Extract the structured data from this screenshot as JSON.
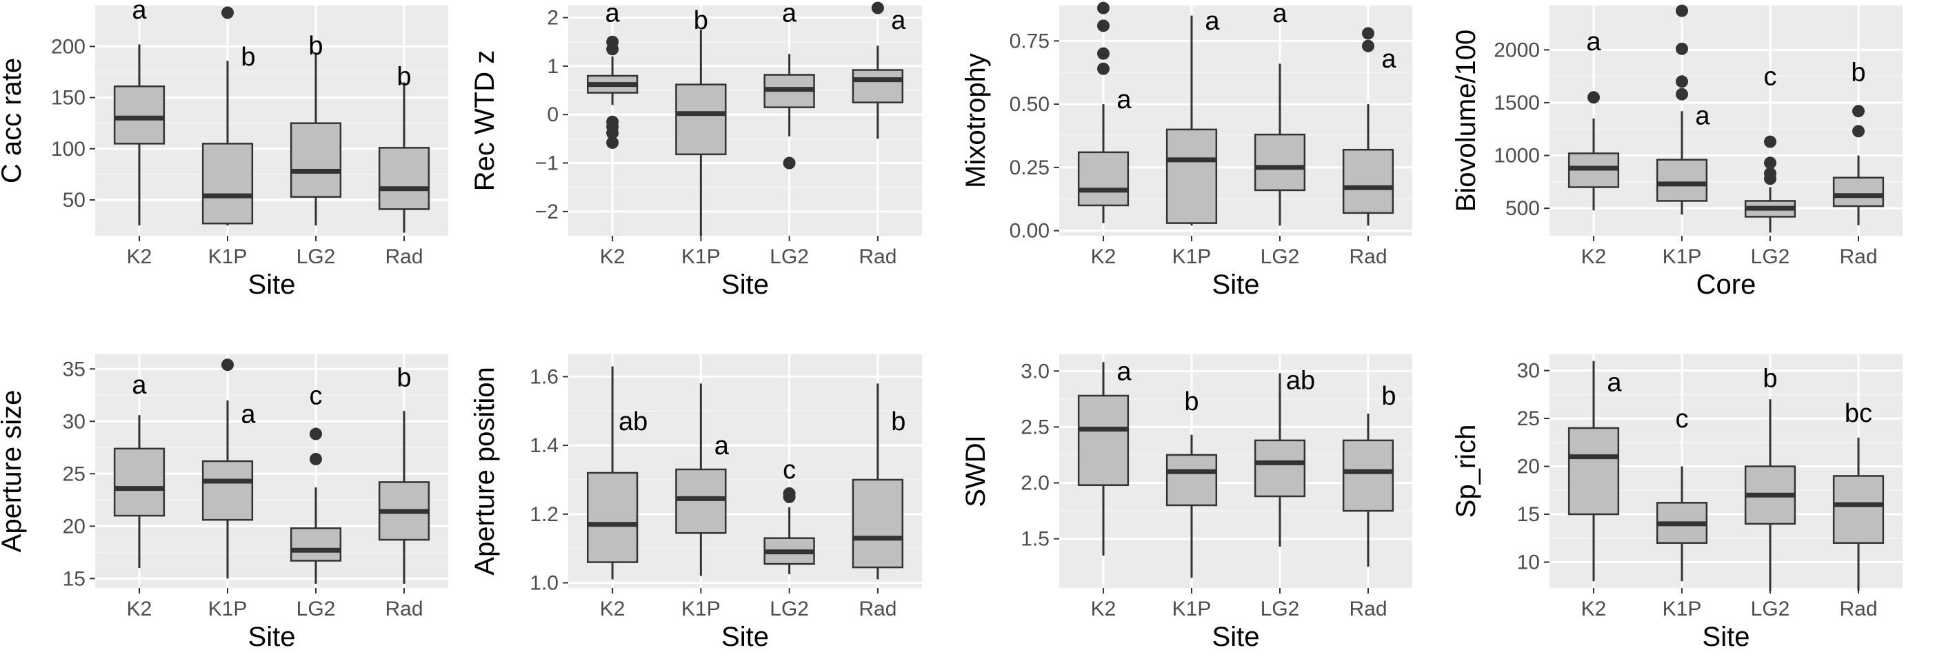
{
  "colors": {
    "panel_bg": "#ebebeb",
    "grid_major": "#ffffff",
    "box_fill": "#bfbfbf",
    "box_line": "#333333",
    "tick_text": "#4d4d4d",
    "text": "#000000"
  },
  "chart_data": [
    {
      "type": "boxplot",
      "title": "",
      "xlabel": "Site",
      "ylabel": "C acc rate",
      "categories": [
        "K2",
        "K1P",
        "LG2",
        "Rad"
      ],
      "ylim": [
        15,
        240
      ],
      "yticks": [
        50,
        100,
        150,
        200
      ],
      "yticklabels": [
        "50",
        "100",
        "150",
        "200"
      ],
      "boxes": [
        {
          "min": 25,
          "q1": 105,
          "median": 130,
          "q3": 161,
          "max": 202,
          "outliers": []
        },
        {
          "min": 25,
          "q1": 27,
          "median": 54,
          "q3": 105,
          "max": 186,
          "outliers": [
            233
          ]
        },
        {
          "min": 25,
          "q1": 53,
          "median": 78,
          "q3": 125,
          "max": 194,
          "outliers": []
        },
        {
          "min": 18,
          "q1": 41,
          "median": 61,
          "q3": 101,
          "max": 165,
          "outliers": []
        }
      ],
      "letters": [
        {
          "text": "a",
          "y": 236,
          "dx": 0
        },
        {
          "text": "b",
          "y": 190,
          "dx": 30
        },
        {
          "text": "b",
          "y": 201,
          "dx": 0
        },
        {
          "text": "b",
          "y": 171,
          "dx": 0
        }
      ]
    },
    {
      "type": "boxplot",
      "title": "",
      "xlabel": "Site",
      "ylabel": "Rec WTD z",
      "categories": [
        "K2",
        "K1P",
        "LG2",
        "Rad"
      ],
      "ylim": [
        -2.5,
        2.25
      ],
      "yticks": [
        -2,
        -1,
        0,
        1,
        2
      ],
      "yticklabels": [
        "−2",
        "−1",
        "0",
        "1",
        "2"
      ],
      "boxes": [
        {
          "min": 0.2,
          "q1": 0.45,
          "median": 0.62,
          "q3": 0.8,
          "max": 1.2,
          "outliers": [
            1.5,
            1.35,
            -0.15,
            -0.25,
            -0.38,
            -0.58
          ]
        },
        {
          "min": -2.5,
          "q1": -0.82,
          "median": 0.02,
          "q3": 0.62,
          "max": 1.75,
          "outliers": []
        },
        {
          "min": -0.45,
          "q1": 0.15,
          "median": 0.52,
          "q3": 0.82,
          "max": 1.25,
          "outliers": [
            -1.0
          ]
        },
        {
          "min": -0.5,
          "q1": 0.25,
          "median": 0.72,
          "q3": 0.92,
          "max": 1.42,
          "outliers": [
            2.2
          ]
        }
      ],
      "letters": [
        {
          "text": "a",
          "y": 2.1,
          "dx": 0
        },
        {
          "text": "b",
          "y": 1.95,
          "dx": 0
        },
        {
          "text": "a",
          "y": 2.1,
          "dx": 0
        },
        {
          "text": "a",
          "y": 1.95,
          "dx": 30
        }
      ]
    },
    {
      "type": "boxplot",
      "title": "",
      "xlabel": "Site",
      "ylabel": "Mixotrophy",
      "categories": [
        "K2",
        "K1P",
        "LG2",
        "Rad"
      ],
      "ylim": [
        -0.02,
        0.89
      ],
      "yticks": [
        0,
        0.25,
        0.5,
        0.75
      ],
      "yticklabels": [
        "0.00",
        "0.25",
        "0.50",
        "0.75"
      ],
      "boxes": [
        {
          "min": 0.03,
          "q1": 0.1,
          "median": 0.16,
          "q3": 0.31,
          "max": 0.5,
          "outliers": [
            0.88,
            0.81,
            0.7,
            0.64
          ]
        },
        {
          "min": 0.02,
          "q1": 0.03,
          "median": 0.28,
          "q3": 0.4,
          "max": 0.85,
          "outliers": []
        },
        {
          "min": 0.02,
          "q1": 0.16,
          "median": 0.25,
          "q3": 0.38,
          "max": 0.66,
          "outliers": []
        },
        {
          "min": 0.02,
          "q1": 0.07,
          "median": 0.17,
          "q3": 0.32,
          "max": 0.5,
          "outliers": [
            0.78,
            0.73
          ]
        }
      ],
      "letters": [
        {
          "text": "a",
          "y": 0.52,
          "dx": 30
        },
        {
          "text": "a",
          "y": 0.83,
          "dx": 30
        },
        {
          "text": "a",
          "y": 0.86,
          "dx": 0
        },
        {
          "text": "a",
          "y": 0.68,
          "dx": 30
        }
      ]
    },
    {
      "type": "boxplot",
      "title": "",
      "xlabel": "Core",
      "ylabel": "Biovolume/100",
      "categories": [
        "K2",
        "K1P",
        "LG2",
        "Rad"
      ],
      "ylim": [
        240,
        2420
      ],
      "yticks": [
        500,
        1000,
        1500,
        2000
      ],
      "yticklabels": [
        "500",
        "1000",
        "1500",
        "2000"
      ],
      "boxes": [
        {
          "min": 480,
          "q1": 700,
          "median": 880,
          "q3": 1020,
          "max": 1350,
          "outliers": [
            1550
          ]
        },
        {
          "min": 440,
          "q1": 570,
          "median": 730,
          "q3": 960,
          "max": 1420,
          "outliers": [
            2370,
            2010,
            1700,
            1580
          ]
        },
        {
          "min": 270,
          "q1": 420,
          "median": 500,
          "q3": 570,
          "max": 700,
          "outliers": [
            1130,
            930,
            830,
            780
          ]
        },
        {
          "min": 340,
          "q1": 520,
          "median": 620,
          "q3": 790,
          "max": 1000,
          "outliers": [
            1420,
            1230
          ]
        }
      ],
      "letters": [
        {
          "text": "a",
          "y": 2080,
          "dx": 0
        },
        {
          "text": "a",
          "y": 1380,
          "dx": 30
        },
        {
          "text": "c",
          "y": 1750,
          "dx": 0
        },
        {
          "text": "b",
          "y": 1790,
          "dx": 0
        }
      ]
    },
    {
      "type": "boxplot",
      "title": "",
      "xlabel": "Site",
      "ylabel": "Aperture size",
      "categories": [
        "K2",
        "K1P",
        "LG2",
        "Rad"
      ],
      "ylim": [
        14.1,
        36.4
      ],
      "yticks": [
        15,
        20,
        25,
        30,
        35
      ],
      "yticklabels": [
        "15",
        "20",
        "25",
        "30",
        "35"
      ],
      "boxes": [
        {
          "min": 16,
          "q1": 21,
          "median": 23.6,
          "q3": 27.4,
          "max": 30.6,
          "outliers": []
        },
        {
          "min": 15,
          "q1": 20.6,
          "median": 24.3,
          "q3": 26.2,
          "max": 32,
          "outliers": [
            35.4
          ]
        },
        {
          "min": 14.5,
          "q1": 16.7,
          "median": 17.7,
          "q3": 19.8,
          "max": 23.7,
          "outliers": [
            28.8,
            26.4
          ]
        },
        {
          "min": 14.5,
          "q1": 18.7,
          "median": 21.4,
          "q3": 24.2,
          "max": 31,
          "outliers": []
        }
      ],
      "letters": [
        {
          "text": "a",
          "y": 33.5,
          "dx": 0
        },
        {
          "text": "a",
          "y": 30.7,
          "dx": 30
        },
        {
          "text": "c",
          "y": 32.5,
          "dx": 0
        },
        {
          "text": "b",
          "y": 34.2,
          "dx": 0
        }
      ]
    },
    {
      "type": "boxplot",
      "title": "",
      "xlabel": "Site",
      "ylabel": "Aperture position",
      "categories": [
        "K2",
        "K1P",
        "LG2",
        "Rad"
      ],
      "ylim": [
        0.985,
        1.665
      ],
      "yticks": [
        1.0,
        1.2,
        1.4,
        1.6
      ],
      "yticklabels": [
        "1.0",
        "1.2",
        "1.4",
        "1.6"
      ],
      "boxes": [
        {
          "min": 1.01,
          "q1": 1.06,
          "median": 1.17,
          "q3": 1.32,
          "max": 1.63,
          "outliers": []
        },
        {
          "min": 1.02,
          "q1": 1.145,
          "median": 1.245,
          "q3": 1.33,
          "max": 1.58,
          "outliers": []
        },
        {
          "min": 1.025,
          "q1": 1.055,
          "median": 1.09,
          "q3": 1.13,
          "max": 1.22,
          "outliers": [
            1.26,
            1.25
          ]
        },
        {
          "min": 1.01,
          "q1": 1.045,
          "median": 1.13,
          "q3": 1.3,
          "max": 1.58,
          "outliers": []
        }
      ],
      "letters": [
        {
          "text": "ab",
          "y": 1.47,
          "dx": 30
        },
        {
          "text": "a",
          "y": 1.4,
          "dx": 30
        },
        {
          "text": "c",
          "y": 1.33,
          "dx": 0
        },
        {
          "text": "b",
          "y": 1.47,
          "dx": 30
        }
      ]
    },
    {
      "type": "boxplot",
      "title": "",
      "xlabel": "Site",
      "ylabel": "SWDI",
      "categories": [
        "K2",
        "K1P",
        "LG2",
        "Rad"
      ],
      "ylim": [
        1.06,
        3.15
      ],
      "yticks": [
        1.5,
        2.0,
        2.5,
        3.0
      ],
      "yticklabels": [
        "1.5",
        "2.0",
        "2.5",
        "3.0"
      ],
      "boxes": [
        {
          "min": 1.35,
          "q1": 1.98,
          "median": 2.48,
          "q3": 2.78,
          "max": 3.08,
          "outliers": []
        },
        {
          "min": 1.15,
          "q1": 1.8,
          "median": 2.1,
          "q3": 2.25,
          "max": 2.43,
          "outliers": []
        },
        {
          "min": 1.43,
          "q1": 1.88,
          "median": 2.18,
          "q3": 2.38,
          "max": 2.98,
          "outliers": []
        },
        {
          "min": 1.25,
          "q1": 1.75,
          "median": 2.1,
          "q3": 2.38,
          "max": 2.62,
          "outliers": []
        }
      ],
      "letters": [
        {
          "text": "a",
          "y": 3.0,
          "dx": 30
        },
        {
          "text": "b",
          "y": 2.73,
          "dx": 0
        },
        {
          "text": "ab",
          "y": 2.92,
          "dx": 30
        },
        {
          "text": "b",
          "y": 2.78,
          "dx": 30
        }
      ]
    },
    {
      "type": "boxplot",
      "title": "",
      "xlabel": "Site",
      "ylabel": "Sp_rich",
      "categories": [
        "K2",
        "K1P",
        "LG2",
        "Rad"
      ],
      "ylim": [
        7.3,
        31.7
      ],
      "yticks": [
        10,
        15,
        20,
        25,
        30
      ],
      "yticklabels": [
        "10",
        "15",
        "20",
        "25",
        "30"
      ],
      "boxes": [
        {
          "min": 8,
          "q1": 15,
          "median": 21,
          "q3": 24,
          "max": 31,
          "outliers": []
        },
        {
          "min": 8,
          "q1": 12,
          "median": 14,
          "q3": 16.2,
          "max": 20,
          "outliers": []
        },
        {
          "min": 7,
          "q1": 14,
          "median": 17,
          "q3": 20,
          "max": 27,
          "outliers": []
        },
        {
          "min": 7,
          "q1": 12,
          "median": 16,
          "q3": 19,
          "max": 23,
          "outliers": []
        }
      ],
      "letters": [
        {
          "text": "a",
          "y": 28.8,
          "dx": 30
        },
        {
          "text": "c",
          "y": 25.0,
          "dx": 0
        },
        {
          "text": "b",
          "y": 29.2,
          "dx": 0
        },
        {
          "text": "bc",
          "y": 25.6,
          "dx": 0
        }
      ]
    }
  ]
}
